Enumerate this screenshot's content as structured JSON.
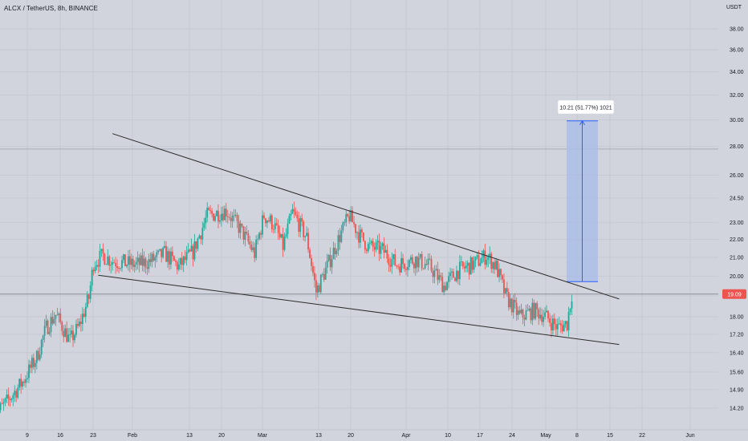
{
  "header": {
    "symbol": "ALCX",
    "pair": "TetherUS",
    "interval": "8h",
    "exchange": "BINANCE",
    "title": "ALCX / TetherUS, 8h, BINANCE"
  },
  "price_axis": {
    "unit": "USDT",
    "tick_labels": [
      "38.00",
      "36.00",
      "34.00",
      "32.00",
      "30.00",
      "28.00",
      "26.00",
      "24.50",
      "23.00",
      "22.00",
      "21.00",
      "20.00",
      "19.00",
      "18.00",
      "17.20",
      "16.40",
      "15.60",
      "14.90",
      "14.20"
    ],
    "current_price_label": "19.09",
    "current_price": 19.09
  },
  "time_axis": {
    "tick_labels": [
      "9",
      "16",
      "23",
      "Feb",
      "13",
      "20",
      "Mar",
      "13",
      "20",
      "Apr",
      "10",
      "17",
      "24",
      "May",
      "8",
      "15",
      "22",
      "Jun"
    ]
  },
  "measure_tool": {
    "label": "10.21 (51.77%) 1021",
    "from_price": 19.72,
    "to_price": 29.93
  },
  "colors": {
    "background": "#d1d4dc",
    "up_candle": "#26a69a",
    "down_candle": "#ef5350",
    "trendline": "#2b2b2b",
    "measure_fill": "#aabbe8",
    "measure_line": "#2962ff",
    "price_tag": "#ef5350",
    "axis_text": "#131722"
  },
  "chart_data": {
    "type": "candlestick",
    "title": "ALCX / TetherUS, 8h, BINANCE",
    "y_scale": "log",
    "ylim": [
      13.9,
      41.0
    ],
    "trendlines": [
      {
        "name": "upper",
        "from": {
          "date": "Jan 27",
          "price": 28.95
        },
        "to": {
          "date": "May 14",
          "price": 18.85
        }
      },
      {
        "name": "lower",
        "from": {
          "date": "Jan 24",
          "price": 20.05
        },
        "to": {
          "date": "May 14",
          "price": 16.75
        }
      }
    ],
    "horizontal_lines": [
      {
        "price": 27.82
      },
      {
        "price": 19.09
      }
    ],
    "price_path": [
      [
        "Jan 2",
        13.9
      ],
      [
        "Jan 5",
        14.5
      ],
      [
        "Jan 8",
        15.2
      ],
      [
        "Jan 11",
        16.2
      ],
      [
        "Jan 13",
        17.5
      ],
      [
        "Jan 15",
        18.1
      ],
      [
        "Jan 18",
        16.9
      ],
      [
        "Jan 20",
        17.6
      ],
      [
        "Jan 22",
        18.9
      ],
      [
        "Jan 23",
        20.7
      ],
      [
        "Jan 25",
        21.1
      ],
      [
        "Jan 27",
        20.8
      ],
      [
        "Feb 1",
        20.6
      ],
      [
        "Feb 4",
        20.8
      ],
      [
        "Feb 7",
        21.2
      ],
      [
        "Feb 10",
        20.5
      ],
      [
        "Feb 13",
        21.3
      ],
      [
        "Feb 16",
        23.4
      ],
      [
        "Feb 20",
        23.7
      ],
      [
        "Feb 23",
        22.6
      ],
      [
        "Feb 26",
        21.2
      ],
      [
        "Feb 28",
        23.4
      ],
      [
        "Mar 2",
        22.9
      ],
      [
        "Mar 4",
        21.6
      ],
      [
        "Mar 6",
        23.6
      ],
      [
        "Mar 9",
        22.1
      ],
      [
        "Mar 11",
        19.2
      ],
      [
        "Mar 14",
        20.9
      ],
      [
        "Mar 16",
        22.2
      ],
      [
        "Mar 18",
        23.4
      ],
      [
        "Mar 20",
        22.3
      ],
      [
        "Mar 22",
        21.6
      ],
      [
        "Mar 25",
        21.4
      ],
      [
        "Mar 28",
        20.6
      ],
      [
        "Apr 1",
        20.9
      ],
      [
        "Apr 4",
        20.5
      ],
      [
        "Apr 7",
        19.5
      ],
      [
        "Apr 10",
        20.3
      ],
      [
        "Apr 13",
        20.6
      ],
      [
        "Apr 16",
        21.1
      ],
      [
        "Apr 18",
        20.5
      ],
      [
        "Apr 20",
        19.0
      ],
      [
        "Apr 23",
        18.0
      ],
      [
        "Apr 26",
        18.3
      ],
      [
        "Apr 28",
        18.1
      ],
      [
        "May 1",
        17.5
      ],
      [
        "May 3",
        17.7
      ],
      [
        "May 4",
        19.1
      ]
    ]
  }
}
